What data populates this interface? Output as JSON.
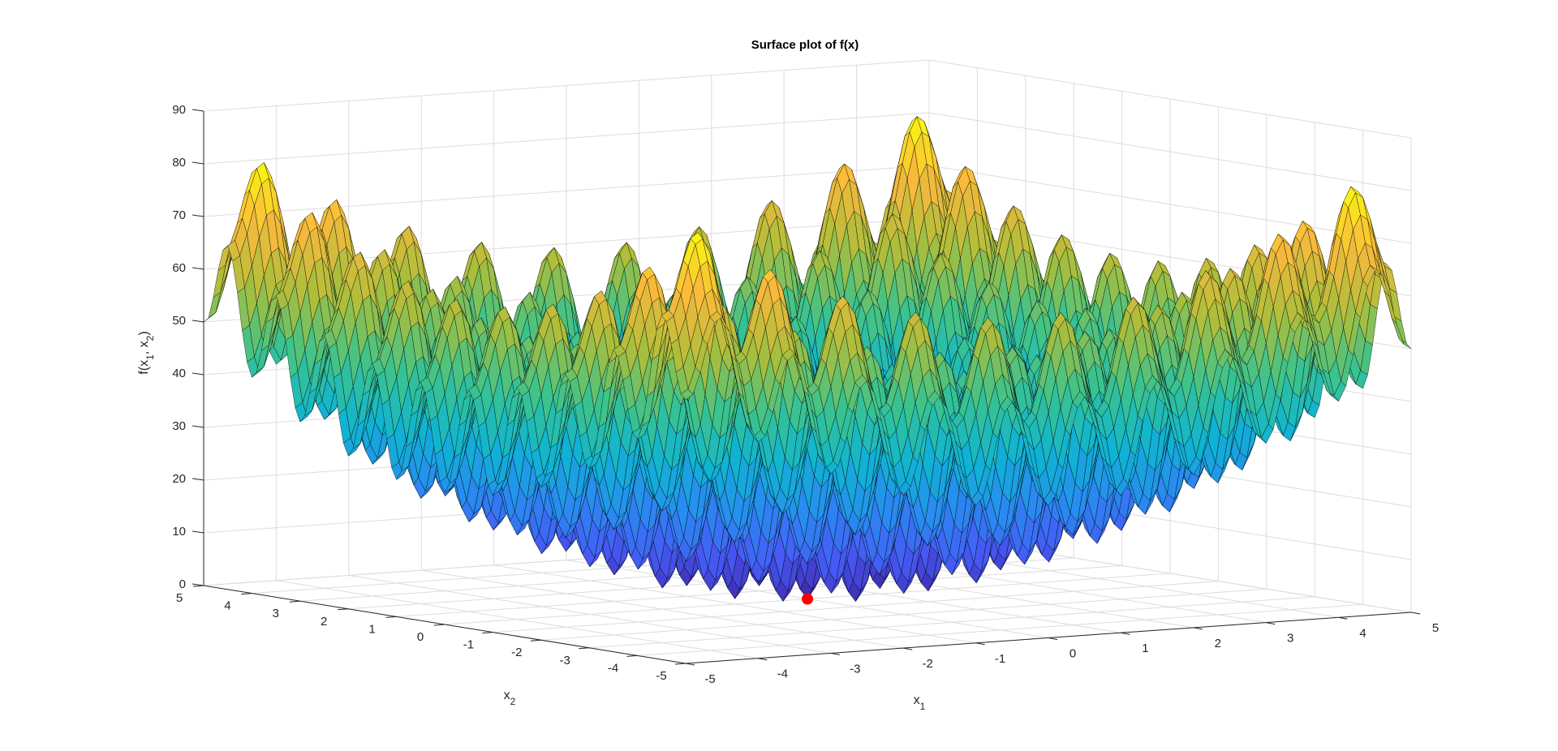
{
  "chart_data": {
    "type": "surface",
    "title": "Surface plot of f(x)",
    "xlabel": "x_1",
    "ylabel": "x_2",
    "zlabel": "f(x_1, x_2)",
    "x1_range": [
      -5,
      5
    ],
    "x2_range": [
      -5,
      5
    ],
    "zlim": [
      0,
      90
    ],
    "x1_ticks": [
      -5,
      -4,
      -3,
      -2,
      -1,
      0,
      1,
      2,
      3,
      4,
      5
    ],
    "x2_ticks": [
      -5,
      -4,
      -3,
      -2,
      -1,
      0,
      1,
      2,
      3,
      4,
      5
    ],
    "z_ticks": [
      0,
      10,
      20,
      30,
      40,
      50,
      60,
      70,
      80,
      90
    ],
    "surface_function": "20 + x1^2 + x2^2 - 10*(cos(2*pi*x1) + cos(2*pi*x2))",
    "grid_step": 0.1,
    "colormap": "parula",
    "edge_color": "#000000",
    "grid": true,
    "marker": {
      "x1": 0,
      "x2": 0,
      "z": 0,
      "color": "#ff0000"
    }
  }
}
